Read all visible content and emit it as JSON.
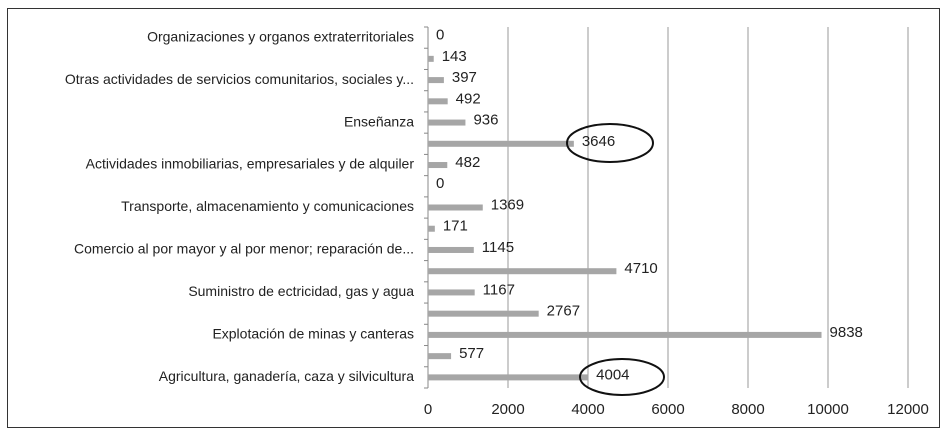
{
  "chart_data": {
    "type": "bar",
    "orientation": "horizontal",
    "categories": [
      "Organizaciones y organos extraterritoriales",
      null,
      "Otras actividades de servicios comunitarios, sociales y...",
      null,
      "Enseñanza",
      null,
      "Actividades inmobiliarias, empresariales y de alquiler",
      null,
      "Transporte, almacenamiento y comunicaciones",
      null,
      "Comercio al por mayor y al por menor; reparación de...",
      null,
      "Suministro de ectricidad, gas y agua",
      null,
      "Explotación de minas y canteras",
      null,
      "Agricultura, ganadería, caza y silvicultura"
    ],
    "values": [
      0,
      143,
      397,
      492,
      936,
      3646,
      482,
      0,
      1369,
      171,
      1145,
      4710,
      1167,
      2767,
      9838,
      577,
      4004
    ],
    "color": "#a6a6a6",
    "xlim": [
      0,
      12000
    ],
    "xticks": [
      0,
      2000,
      4000,
      6000,
      8000,
      10000,
      12000
    ],
    "grid": true
  }
}
